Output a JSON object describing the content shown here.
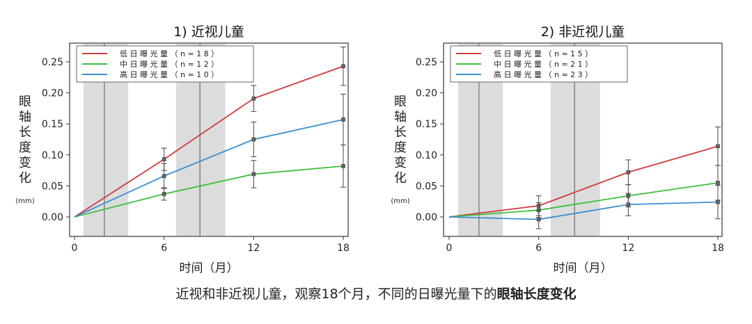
{
  "caption": {
    "prefix": "近视和非近视儿童，观察18个月，不同的日曝光量下的",
    "emphasis": "眼轴长度变化"
  },
  "chart_data": [
    {
      "type": "line",
      "title": "1) 近视儿童",
      "xlabel": "时间（月）",
      "ylabel": "眼轴长度变化",
      "ylabel_unit": "(mm)",
      "x": [
        0,
        6,
        12,
        18
      ],
      "xticks": [
        "0",
        "6",
        "12",
        "18"
      ],
      "yticks": [
        "0.00",
        "0.05",
        "0.10",
        "0.15",
        "0.20",
        "0.25"
      ],
      "xlim": [
        0,
        18
      ],
      "ylim": [
        -0.02,
        0.27
      ],
      "grid": false,
      "legend_position": "top-left",
      "shaded_bands": [
        [
          0.6,
          3.6
        ],
        [
          6.8,
          10.1
        ]
      ],
      "band_lines": [
        2.0,
        8.4
      ],
      "series": [
        {
          "name": "低 日 曝 光 量 （ n = 1 8 ）",
          "color": "#d03a3a",
          "values": [
            0,
            0.093,
            0.191,
            0.243
          ],
          "errors": [
            0,
            0.018,
            0.021,
            0.031
          ]
        },
        {
          "name": "中 日 曝 光 量 （ n = 1 2 ）",
          "color": "#3cbf3c",
          "values": [
            0,
            0.037,
            0.069,
            0.082
          ],
          "errors": [
            0,
            0.01,
            0.022,
            0.034
          ]
        },
        {
          "name": "高 日 曝 光 量 （ n = 1 0 ）",
          "color": "#3a8fd0",
          "values": [
            0,
            0.066,
            0.125,
            0.157
          ],
          "errors": [
            0,
            0.02,
            0.028,
            0.041
          ]
        }
      ]
    },
    {
      "type": "line",
      "title": "2) 非近视儿童",
      "xlabel": "时间（月）",
      "ylabel": "眼轴长度变化",
      "ylabel_unit": "(mm)",
      "x": [
        0,
        6,
        12,
        18
      ],
      "xticks": [
        "0",
        "6",
        "12",
        "18"
      ],
      "yticks": [
        "0.00",
        "0.05",
        "0.10",
        "0.15",
        "0.20",
        "0.25"
      ],
      "xlim": [
        0,
        18
      ],
      "ylim": [
        -0.02,
        0.27
      ],
      "grid": false,
      "legend_position": "top-left",
      "shaded_bands": [
        [
          0.6,
          3.6
        ],
        [
          6.8,
          10.1
        ]
      ],
      "band_lines": [
        2.0,
        8.4
      ],
      "series": [
        {
          "name": "低 日 曝 光 量 （ n = 1 5 ）",
          "color": "#d03a3a",
          "values": [
            0,
            0.018,
            0.072,
            0.114
          ],
          "errors": [
            0,
            0.016,
            0.02,
            0.031
          ]
        },
        {
          "name": "中 日 曝 光 量 （ n = 2 1 ）",
          "color": "#3cbf3c",
          "values": [
            0,
            0.011,
            0.034,
            0.055
          ],
          "errors": [
            0,
            0.012,
            0.018,
            0.028
          ]
        },
        {
          "name": "高 日 曝 光 量 （ n = 2 3 ）",
          "color": "#3a8fd0",
          "values": [
            0,
            -0.004,
            0.02,
            0.024
          ],
          "errors": [
            0,
            0.015,
            0.018,
            0.027
          ]
        }
      ]
    }
  ]
}
